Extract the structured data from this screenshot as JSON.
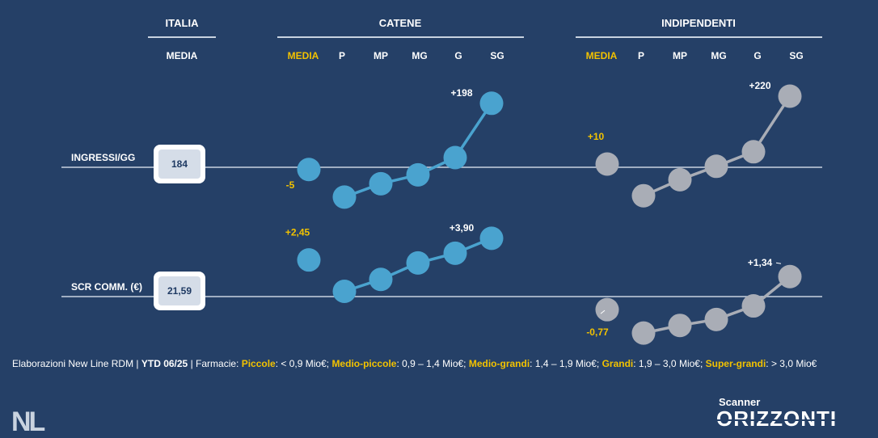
{
  "headers": {
    "italia": "ITALIA",
    "catene": "CATENE",
    "indipendenti": "INDIPENDENTI",
    "media_label": "MEDIA"
  },
  "columns": {
    "media": "MEDIA",
    "p": "P",
    "mp": "MP",
    "mg": "MG",
    "g": "G",
    "sg": "SG"
  },
  "rows": {
    "ingressi": {
      "label": "INGRESSI/GG",
      "italia_value": "184"
    },
    "scr": {
      "label": "SCR COMM. (€)",
      "italia_value": "21,59"
    }
  },
  "chart_data": [
    {
      "type": "line",
      "metric": "INGRESSI/GG",
      "baseline": "184",
      "categories": [
        "MEDIA",
        "P",
        "MP",
        "MG",
        "G",
        "SG"
      ],
      "series": [
        {
          "group": "CATENE",
          "color": "#4aa3cf",
          "values": [
            -5,
            -67,
            -37,
            -17,
            30,
            198
          ],
          "media_label": "-5",
          "end_label": "+198"
        },
        {
          "group": "INDIPENDENTI",
          "color": "#a9adb6",
          "values": [
            10,
            -64,
            -28,
            3,
            48,
            220
          ],
          "media_label": "+10",
          "end_label": "+220"
        }
      ]
    },
    {
      "type": "line",
      "metric": "SCR COMM. (€)",
      "baseline": "21,59",
      "categories": [
        "MEDIA",
        "P",
        "MP",
        "MG",
        "G",
        "SG"
      ],
      "series": [
        {
          "group": "CATENE",
          "color": "#4aa3cf",
          "values": [
            2.45,
            0.35,
            1.15,
            2.25,
            2.9,
            3.9
          ],
          "media_label": "+2,45",
          "end_label": "+3,90"
        },
        {
          "group": "INDIPENDENTI",
          "color": "#a9adb6",
          "values": [
            -0.77,
            -2.15,
            -1.7,
            -1.35,
            -0.55,
            1.34
          ],
          "media_label": "-0,77",
          "end_label": "+1,34"
        }
      ]
    }
  ],
  "colors": {
    "background": "#254067",
    "accent": "#f2c200",
    "catene": "#4aa3cf",
    "indipendenti": "#a9adb6"
  },
  "footnote": {
    "prefix": "Elaborazioni New Line RDM | ",
    "period": "YTD 06/25",
    "farmacie": " | Farmacie: ",
    "piccole_label": "Piccole",
    "piccole_range": ": < 0,9 Mio€; ",
    "mediopiccole_label": "Medio-piccole",
    "mediopiccole_range": ": 0,9 – 1,4 Mio€; ",
    "mediograndi_label": "Medio-grandi",
    "mediograndi_range": ": 1,4 – 1,9 Mio€; ",
    "grandi_label": "Grandi",
    "grandi_range": ": 1,9 – 3,0 Mio€; ",
    "supergrandi_label": "Super-grandi",
    "supergrandi_range": ": > 3,0 Mio€"
  },
  "brand": {
    "logo_left": "NL",
    "small": "Scanner",
    "big": "ORIZZONTI"
  }
}
